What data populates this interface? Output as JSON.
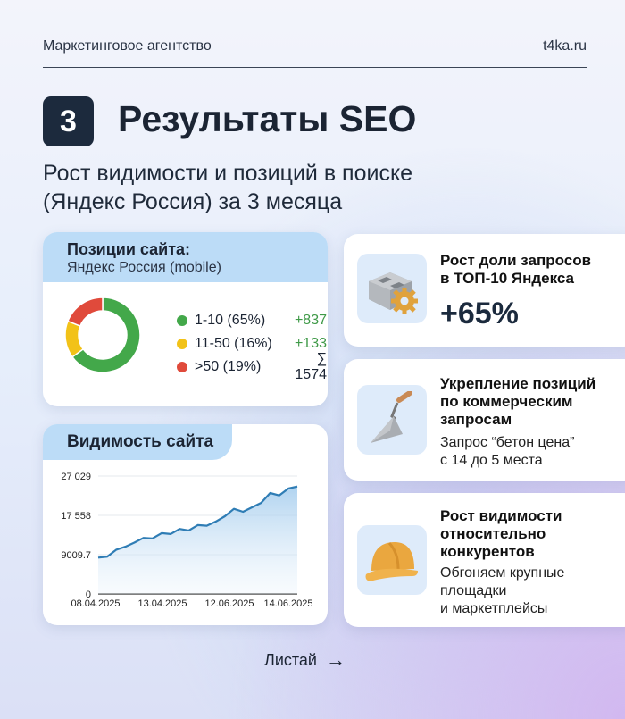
{
  "header": {
    "agency": "Маркетинговое агентство",
    "site": "t4ka.ru"
  },
  "section": {
    "number": "3",
    "title": "Результаты SEO",
    "subtitle_line1": "Рост видимости и позиций в поиске",
    "subtitle_line2": "(Яндекс Россия) за 3 месяца"
  },
  "positions_card": {
    "title": "Позиции сайта:",
    "subtitle": "Яндекс Россия (mobile)",
    "legend": [
      {
        "label": "1-10 (65%)",
        "delta": "+837",
        "color": "#43a84a"
      },
      {
        "label": "11-50 (16%)",
        "delta": "+133",
        "color": "#f2c218"
      },
      {
        "label": ">50 (19%)",
        "delta": "∑ 1574",
        "color": "#e04a3b"
      }
    ]
  },
  "visibility_card": {
    "title": "Видимость сайта"
  },
  "chart_data": [
    {
      "type": "pie",
      "style": "donut",
      "categories": [
        "1-10",
        "11-50",
        ">50"
      ],
      "values": [
        65,
        16,
        19
      ],
      "colors": [
        "#43a84a",
        "#f2c218",
        "#e04a3b"
      ],
      "legend": [
        "1-10 (65%)",
        "11-50 (16%)",
        ">50 (19%)"
      ]
    },
    {
      "type": "area",
      "title": "Видимость сайта",
      "x_tick_labels": [
        "08.04.2025",
        "13.04.2025",
        "12.06.2025",
        "14.06.2025"
      ],
      "y_tick_labels": [
        "0",
        "9009.7",
        "17 558",
        "27 029"
      ],
      "y_ticks": [
        0,
        9009.7,
        17558,
        27029
      ],
      "grid": true,
      "color": "#2f7db5",
      "values": [
        8330,
        8530,
        10100,
        10740,
        11640,
        12670,
        12540,
        13700,
        13500,
        14600,
        14280,
        15440,
        15310,
        16210,
        17370,
        19140,
        18420,
        19490,
        20570,
        22940,
        22360,
        24010,
        24510
      ]
    }
  ],
  "cards": [
    {
      "title_l1": "Рост доли запросов",
      "title_l2": "в ТОП-10 Яндекса",
      "value": "+65%",
      "icon": "brick-gear-icon"
    },
    {
      "title_l1": "Укрепление позиций",
      "title_l2": "по коммерческим",
      "title_l3": "запросам",
      "text_l1": "Запрос “бетон цена”",
      "text_l2": "с 14 до 5 места",
      "icon": "trowel-icon"
    },
    {
      "title_l1": "Рост видимости",
      "title_l2": "относительно",
      "title_l3": "конкурентов",
      "text_l1": "Обгоняем крупные",
      "text_l2": "площадки",
      "text_l3": "и маркетплейсы",
      "icon": "hard-hat-icon"
    }
  ],
  "footer": {
    "swipe": "Листай",
    "arrow": "→"
  }
}
